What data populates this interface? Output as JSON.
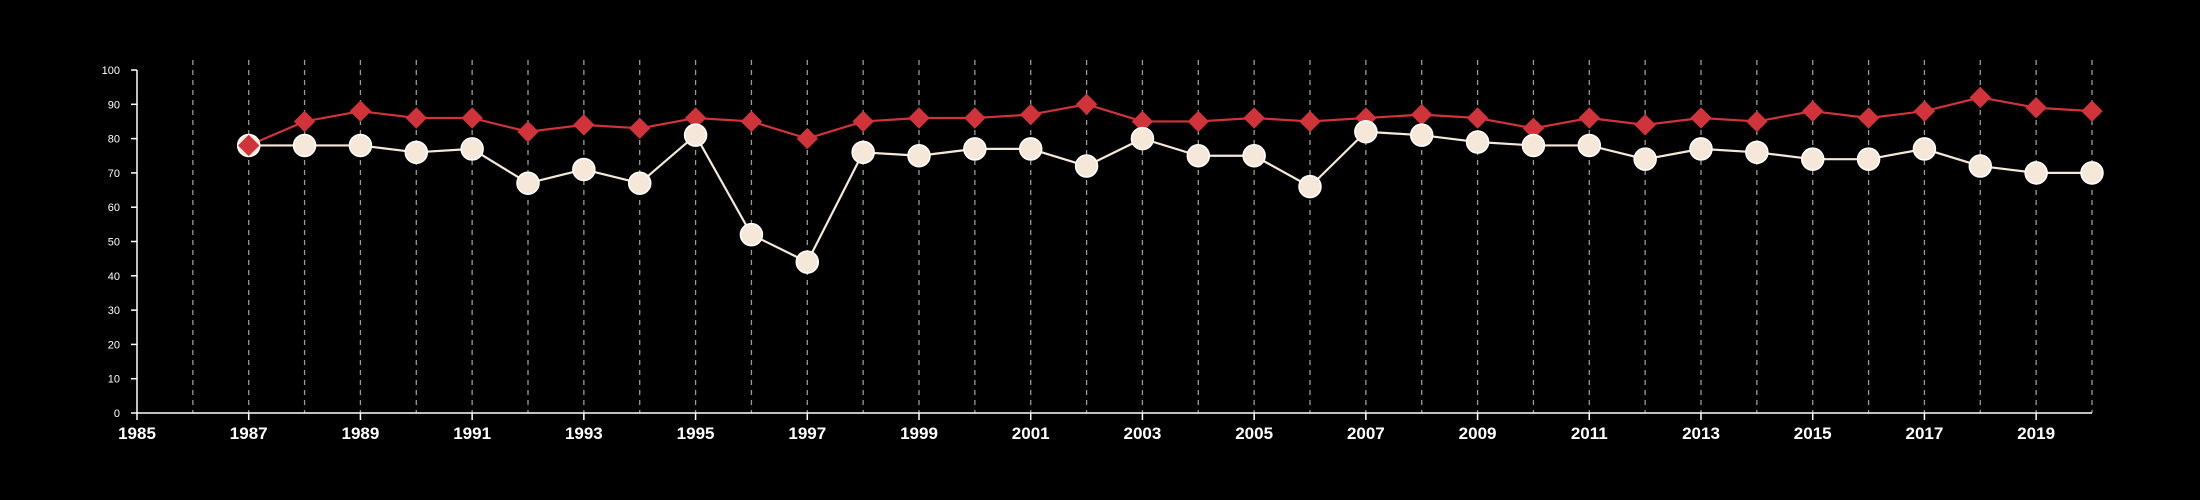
{
  "chart_data": {
    "type": "line",
    "title": "",
    "xlabel": "",
    "ylabel": "",
    "xlim": [
      1985,
      2020
    ],
    "ylim": [
      0,
      100
    ],
    "y_ticks": [
      0,
      10,
      20,
      30,
      40,
      50,
      60,
      70,
      80,
      90,
      100
    ],
    "x_ticks": [
      1985,
      1987,
      1989,
      1991,
      1993,
      1995,
      1997,
      1999,
      2001,
      2003,
      2005,
      2007,
      2009,
      2011,
      2013,
      2015,
      2017,
      2019
    ],
    "grid": "vertical dashed at every year",
    "legend": "none",
    "x": [
      1987,
      1988,
      1989,
      1990,
      1991,
      1992,
      1993,
      1994,
      1995,
      1996,
      1997,
      1998,
      1999,
      2000,
      2001,
      2002,
      2003,
      2004,
      2005,
      2006,
      2007,
      2008,
      2009,
      2010,
      2011,
      2012,
      2013,
      2014,
      2015,
      2016,
      2017,
      2018,
      2019,
      2020
    ],
    "series": [
      {
        "marker": "diamond",
        "color": "#d0343a",
        "values": [
          78,
          85,
          88,
          86,
          86,
          82,
          84,
          83,
          86,
          85,
          80,
          85,
          86,
          86,
          87,
          90,
          85,
          85,
          86,
          85,
          86,
          87,
          86,
          83,
          86,
          84,
          86,
          85,
          88,
          86,
          88,
          92,
          89,
          88
        ]
      },
      {
        "marker": "circle",
        "color": "#f5e8d8",
        "values": [
          78,
          78,
          78,
          76,
          77,
          67,
          71,
          67,
          81,
          52,
          44,
          76,
          75,
          77,
          77,
          72,
          80,
          75,
          75,
          66,
          82,
          81,
          79,
          78,
          78,
          74,
          77,
          76,
          74,
          74,
          77,
          72,
          70,
          70
        ]
      }
    ]
  }
}
